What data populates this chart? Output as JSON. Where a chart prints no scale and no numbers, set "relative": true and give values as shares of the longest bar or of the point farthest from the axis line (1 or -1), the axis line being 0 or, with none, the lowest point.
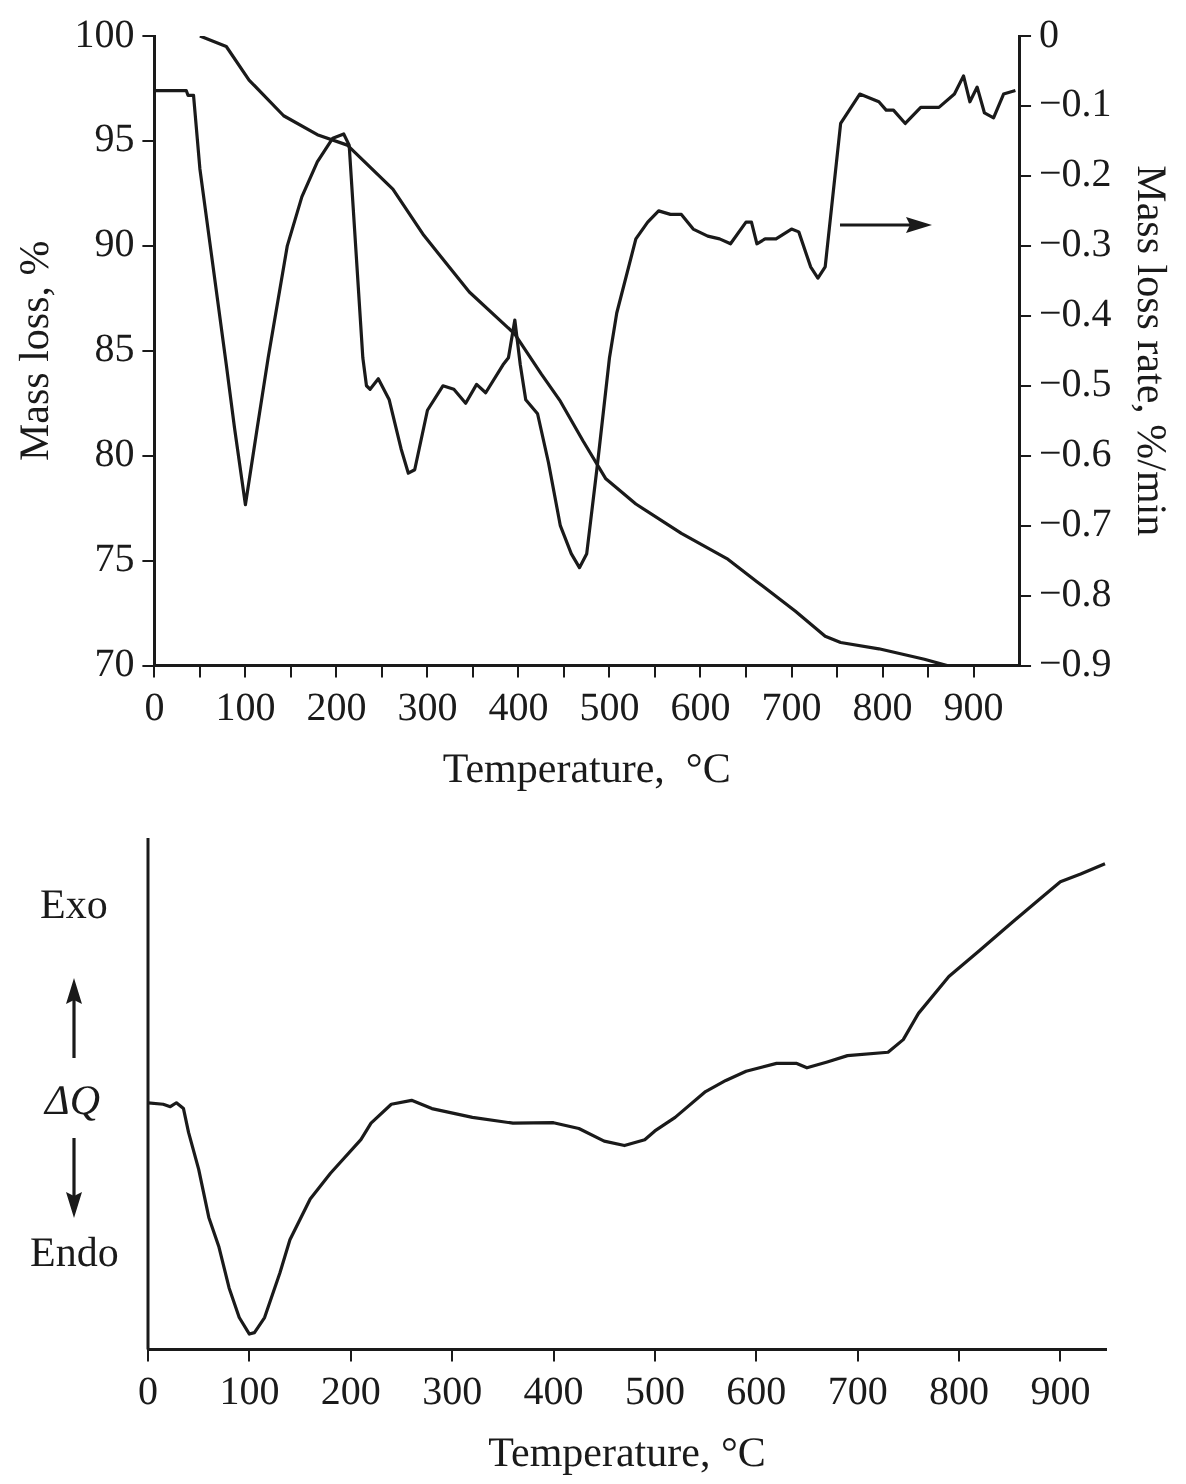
{
  "chart_data": [
    {
      "type": "line",
      "xlabel": "Temperature,  °C",
      "ylabel": "Mass loss, %",
      "y2label": "Mass loss rate, %/min",
      "xlim": [
        0,
        950
      ],
      "xticks": [
        0,
        {
          "value": 50,
          "label": null
        },
        100,
        {
          "value": 150,
          "label": null
        },
        200,
        {
          "value": 250,
          "label": null
        },
        300,
        {
          "value": 350,
          "label": null
        },
        400,
        {
          "value": 450,
          "label": null
        },
        500,
        {
          "value": 550,
          "label": null
        },
        600,
        {
          "value": 650,
          "label": null
        },
        700,
        {
          "value": 750,
          "label": null
        },
        800,
        {
          "value": 850,
          "label": null
        },
        900
      ],
      "ylim": [
        70,
        100
      ],
      "yticks": [
        70,
        75,
        80,
        85,
        90,
        95,
        100
      ],
      "y2lim": [
        -0.9,
        0
      ],
      "y2ticks": [
        {
          "value": -0.9,
          "label": "−0.9"
        },
        {
          "value": -0.8,
          "label": "−0.8"
        },
        {
          "value": -0.7,
          "label": "−0.7"
        },
        {
          "value": -0.6,
          "label": "−0.6"
        },
        {
          "value": -0.5,
          "label": "−0.5"
        },
        {
          "value": -0.4,
          "label": "−0.4"
        },
        {
          "value": -0.3,
          "label": "−0.3"
        },
        {
          "value": -0.2,
          "label": "−0.2"
        },
        {
          "value": -0.1,
          "label": "−0.1"
        },
        0
      ],
      "grid": false,
      "marker": "none",
      "line_style": "solid",
      "series": [
        {
          "color": "#1a1a1a",
          "x": [
            50,
            79,
            104,
            142,
            179,
            212,
            262,
            296,
            346,
            396,
            425,
            446,
            471,
            496,
            529,
            579,
            629,
            662,
            704,
            737,
            754,
            796,
            846,
            871
          ],
          "values": [
            100,
            99.5,
            97.9,
            96.2,
            95.3,
            94.8,
            92.7,
            90.5,
            87.8,
            85.8,
            83.9,
            82.6,
            80.7,
            78.9,
            77.7,
            76.3,
            75.1,
            74.0,
            72.6,
            71.4,
            71.1,
            70.8,
            70.3,
            70.0
          ]
        },
        {
          "color": "#1a1a1a",
          "axis": "y2",
          "x": [
            0,
            35,
            37,
            43,
            50,
            79,
            88,
            100,
            113,
            125,
            146,
            162,
            179,
            196,
            208,
            214,
            229,
            233,
            237,
            246,
            258,
            271,
            279,
            286,
            300,
            317,
            329,
            342,
            354,
            364,
            383,
            389,
            396,
            402,
            408,
            421,
            433,
            446,
            458,
            467,
            475,
            487,
            500,
            508,
            529,
            542,
            554,
            567,
            579,
            592,
            608,
            621,
            633,
            650,
            656,
            662,
            671,
            683,
            700,
            708,
            721,
            729,
            737,
            754,
            775,
            796,
            804,
            812,
            825,
            842,
            862,
            879,
            889,
            896,
            904,
            912,
            922,
            933,
            946
          ],
          "values": [
            -0.078,
            -0.078,
            -0.085,
            -0.085,
            -0.19,
            -0.47,
            -0.56,
            -0.67,
            -0.56,
            -0.46,
            -0.3,
            -0.23,
            -0.18,
            -0.146,
            -0.14,
            -0.156,
            -0.46,
            -0.5,
            -0.505,
            -0.49,
            -0.52,
            -0.59,
            -0.625,
            -0.62,
            -0.535,
            -0.5,
            -0.505,
            -0.525,
            -0.498,
            -0.51,
            -0.47,
            -0.46,
            -0.406,
            -0.47,
            -0.52,
            -0.54,
            -0.61,
            -0.7,
            -0.74,
            -0.76,
            -0.74,
            -0.61,
            -0.46,
            -0.396,
            -0.29,
            -0.266,
            -0.25,
            -0.255,
            -0.255,
            -0.276,
            -0.286,
            -0.29,
            -0.297,
            -0.266,
            -0.266,
            -0.297,
            -0.29,
            -0.29,
            -0.276,
            -0.28,
            -0.33,
            -0.346,
            -0.33,
            -0.125,
            -0.083,
            -0.094,
            -0.106,
            -0.106,
            -0.125,
            -0.102,
            -0.102,
            -0.083,
            -0.057,
            -0.094,
            -0.073,
            -0.11,
            -0.117,
            -0.083,
            -0.078
          ]
        }
      ]
    },
    {
      "type": "line",
      "relative": true,
      "xlabel": "Temperature, °C",
      "ylabel": "ΔQ",
      "annotations": [
        "Exo",
        "Endo"
      ],
      "tick_labels": "x",
      "xlim": [
        0,
        945
      ],
      "xticks": [
        0,
        100,
        200,
        300,
        400,
        500,
        600,
        700,
        800,
        900
      ],
      "grid": false,
      "marker": "none",
      "line_style": "solid",
      "series": [
        {
          "color": "#1a1a1a",
          "x": [
            0,
            15,
            22,
            28,
            35,
            40,
            50,
            60,
            70,
            80,
            90,
            100,
            105,
            115,
            130,
            140,
            160,
            180,
            210,
            220,
            240,
            260,
            280,
            320,
            360,
            400,
            425,
            450,
            470,
            490,
            500,
            520,
            550,
            570,
            590,
            620,
            640,
            650,
            670,
            690,
            730,
            745,
            760,
            790,
            820,
            850,
            880,
            900,
            920,
            944
          ],
          "values": [
            0.508,
            0.505,
            0.5,
            0.508,
            0.496,
            0.447,
            0.371,
            0.272,
            0.211,
            0.127,
            0.066,
            0.032,
            0.035,
            0.066,
            0.157,
            0.226,
            0.31,
            0.363,
            0.432,
            0.466,
            0.505,
            0.513,
            0.496,
            0.478,
            0.466,
            0.467,
            0.455,
            0.429,
            0.42,
            0.432,
            0.45,
            0.478,
            0.531,
            0.554,
            0.573,
            0.589,
            0.589,
            0.58,
            0.592,
            0.605,
            0.612,
            0.638,
            0.692,
            0.768,
            0.821,
            0.875,
            0.928,
            0.963,
            0.979,
            1
          ]
        }
      ]
    }
  ]
}
